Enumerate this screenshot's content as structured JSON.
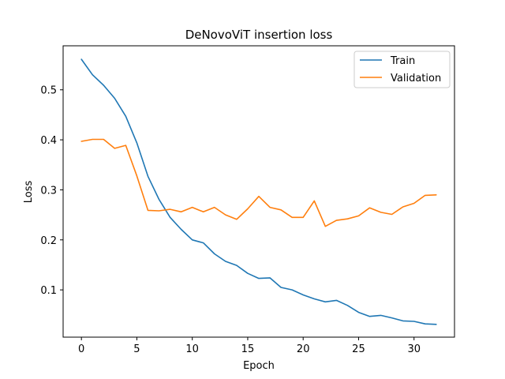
{
  "chart_data": {
    "type": "line",
    "title": "DeNovoViT insertion loss",
    "xlabel": "Epoch",
    "ylabel": "Loss",
    "xlim": [
      -1.65,
      33.65
    ],
    "ylim": [
      0.0055,
      0.588
    ],
    "xticks": [
      0,
      5,
      10,
      15,
      20,
      25,
      30
    ],
    "yticks": [
      0.1,
      0.2,
      0.3,
      0.4,
      0.5
    ],
    "grid": false,
    "legend_position": "upper-right",
    "series": [
      {
        "name": "Train",
        "color": "#1f77b4",
        "x": [
          0,
          1,
          2,
          3,
          4,
          5,
          6,
          7,
          8,
          9,
          10,
          11,
          12,
          13,
          14,
          15,
          16,
          17,
          18,
          19,
          20,
          21,
          22,
          23,
          24,
          25,
          26,
          27,
          28,
          29,
          30,
          31,
          32
        ],
        "values": [
          0.561,
          0.53,
          0.509,
          0.483,
          0.447,
          0.394,
          0.327,
          0.281,
          0.245,
          0.221,
          0.2,
          0.194,
          0.172,
          0.157,
          0.149,
          0.133,
          0.123,
          0.124,
          0.105,
          0.1,
          0.09,
          0.082,
          0.076,
          0.079,
          0.069,
          0.055,
          0.047,
          0.049,
          0.044,
          0.038,
          0.037,
          0.032,
          0.031
        ]
      },
      {
        "name": "Validation",
        "color": "#ff7f0e",
        "x": [
          0,
          1,
          2,
          3,
          4,
          5,
          6,
          7,
          8,
          9,
          10,
          11,
          12,
          13,
          14,
          15,
          16,
          17,
          18,
          19,
          20,
          21,
          22,
          23,
          24,
          25,
          26,
          27,
          28,
          29,
          30,
          31,
          32
        ],
        "values": [
          0.397,
          0.401,
          0.401,
          0.383,
          0.389,
          0.328,
          0.259,
          0.258,
          0.261,
          0.256,
          0.265,
          0.256,
          0.265,
          0.25,
          0.241,
          0.262,
          0.287,
          0.265,
          0.26,
          0.245,
          0.245,
          0.278,
          0.227,
          0.239,
          0.242,
          0.248,
          0.264,
          0.255,
          0.251,
          0.266,
          0.273,
          0.289,
          0.29
        ]
      }
    ]
  }
}
